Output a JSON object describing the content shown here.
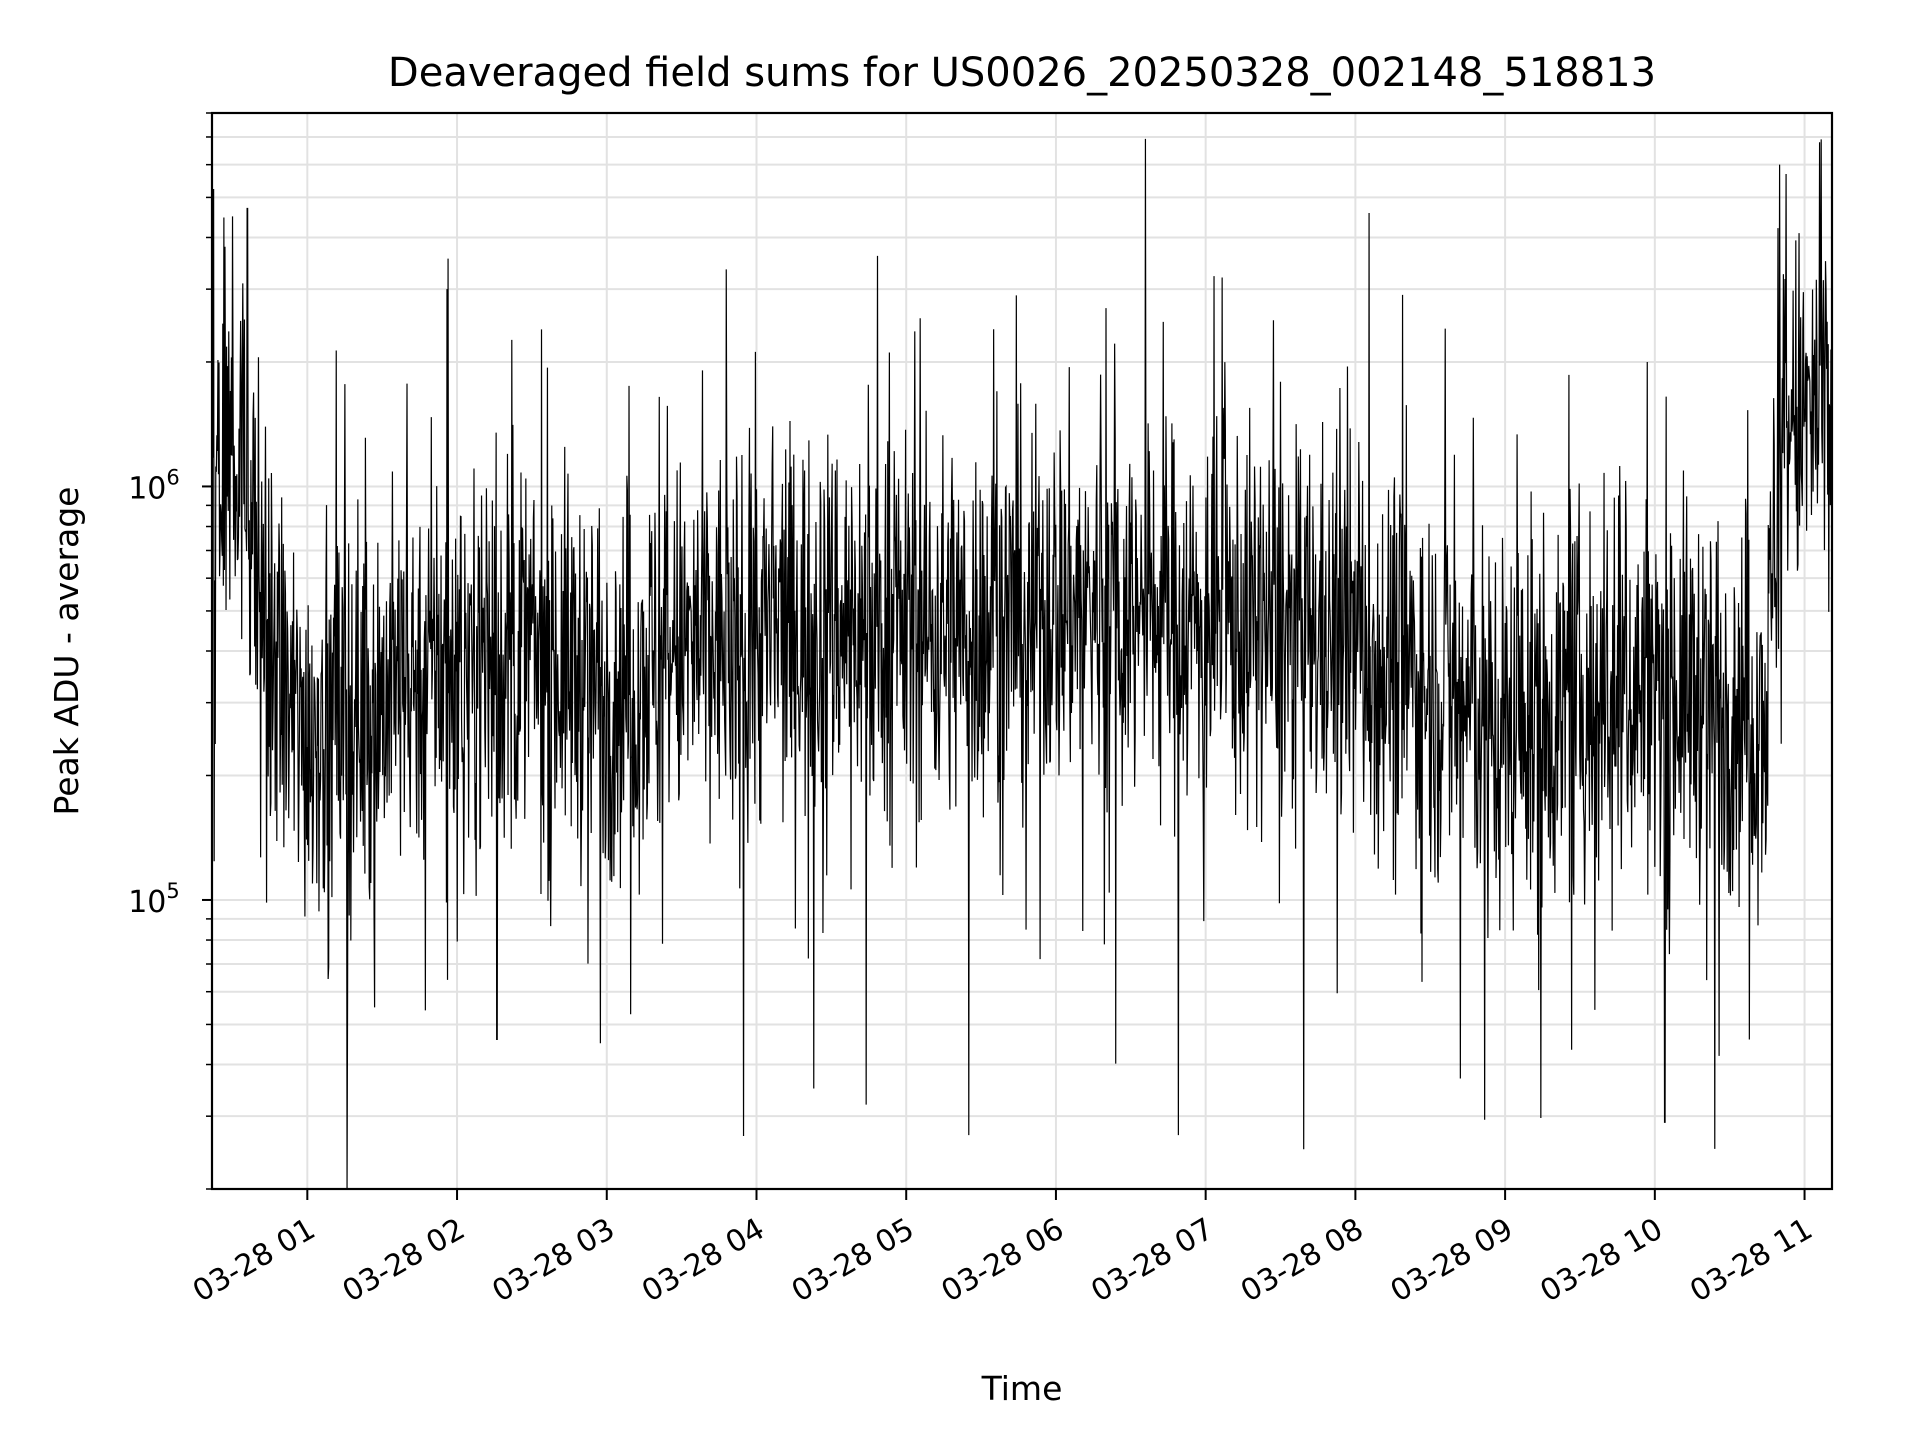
{
  "chart_data": {
    "type": "line",
    "title": "Deaveraged field sums for US0026_20250328_002148_518813",
    "xlabel": "Time",
    "ylabel": "Peak ADU - average",
    "y_scale": "log",
    "ylim": [
      20000,
      8000000
    ],
    "xlim": [
      "2025-03-28 00:21:48",
      "2025-03-28 11:11:00"
    ],
    "x_ticks": [
      {
        "label": "03-28 01",
        "time": "2025-03-28 01:00"
      },
      {
        "label": "03-28 02",
        "time": "2025-03-28 02:00"
      },
      {
        "label": "03-28 03",
        "time": "2025-03-28 03:00"
      },
      {
        "label": "03-28 04",
        "time": "2025-03-28 04:00"
      },
      {
        "label": "03-28 05",
        "time": "2025-03-28 05:00"
      },
      {
        "label": "03-28 06",
        "time": "2025-03-28 06:00"
      },
      {
        "label": "03-28 07",
        "time": "2025-03-28 07:00"
      },
      {
        "label": "03-28 08",
        "time": "2025-03-28 08:00"
      },
      {
        "label": "03-28 09",
        "time": "2025-03-28 09:00"
      },
      {
        "label": "03-28 10",
        "time": "2025-03-28 10:00"
      },
      {
        "label": "03-28 11",
        "time": "2025-03-28 11:00"
      }
    ],
    "y_ticks": [
      {
        "base": "10",
        "exp": "5",
        "value": 100000
      },
      {
        "base": "10",
        "exp": "6",
        "value": 1000000
      }
    ],
    "grid": true,
    "series_color": "#000000",
    "series": [
      {
        "trend": [
          {
            "t": "2025-03-28 00:22",
            "y": 1200000
          },
          {
            "t": "2025-03-28 00:30",
            "y": 1500000
          },
          {
            "t": "2025-03-28 00:37",
            "y": 900000
          },
          {
            "t": "2025-03-28 00:45",
            "y": 400000
          },
          {
            "t": "2025-03-28 00:55",
            "y": 260000
          },
          {
            "t": "2025-03-28 01:20",
            "y": 280000
          },
          {
            "t": "2025-03-28 01:50",
            "y": 380000
          },
          {
            "t": "2025-03-28 02:30",
            "y": 400000
          },
          {
            "t": "2025-03-28 03:00",
            "y": 330000
          },
          {
            "t": "2025-03-28 03:30",
            "y": 400000
          },
          {
            "t": "2025-03-28 04:00",
            "y": 430000
          },
          {
            "t": "2025-03-28 04:30",
            "y": 480000
          },
          {
            "t": "2025-03-28 05:00",
            "y": 450000
          },
          {
            "t": "2025-03-28 05:30",
            "y": 460000
          },
          {
            "t": "2025-03-28 06:00",
            "y": 520000
          },
          {
            "t": "2025-03-28 06:30",
            "y": 520000
          },
          {
            "t": "2025-03-28 07:00",
            "y": 470000
          },
          {
            "t": "2025-03-28 07:30",
            "y": 450000
          },
          {
            "t": "2025-03-28 08:00",
            "y": 420000
          },
          {
            "t": "2025-03-28 08:30",
            "y": 330000
          },
          {
            "t": "2025-03-28 09:00",
            "y": 260000
          },
          {
            "t": "2025-03-28 09:30",
            "y": 300000
          },
          {
            "t": "2025-03-28 10:00",
            "y": 330000
          },
          {
            "t": "2025-03-28 10:30",
            "y": 310000
          },
          {
            "t": "2025-03-28 10:45",
            "y": 300000
          },
          {
            "t": "2025-03-28 10:48",
            "y": 800000
          },
          {
            "t": "2025-03-28 10:52",
            "y": 1400000
          },
          {
            "t": "2025-03-28 11:11",
            "y": 1500000
          }
        ],
        "spikes_high": [
          {
            "t": "2025-03-28 00:27",
            "y": 3800000
          },
          {
            "t": "2025-03-28 00:30",
            "y": 4500000
          },
          {
            "t": "2025-03-28 00:36",
            "y": 4700000
          },
          {
            "t": "2025-03-28 01:56",
            "y": 3000000
          },
          {
            "t": "2025-03-28 05:35",
            "y": 2400000
          },
          {
            "t": "2025-03-28 06:20",
            "y": 2700000
          },
          {
            "t": "2025-03-28 06:43",
            "y": 2500000
          },
          {
            "t": "2025-03-28 09:57",
            "y": 2000000
          },
          {
            "t": "2025-03-28 10:50",
            "y": 6000000
          },
          {
            "t": "2025-03-28 11:06",
            "y": 6800000
          }
        ],
        "spikes_low": [
          {
            "t": "2025-03-28 01:27",
            "y": 55000
          },
          {
            "t": "2025-03-28 02:16",
            "y": 46000
          },
          {
            "t": "2025-03-28 04:23",
            "y": 35000
          },
          {
            "t": "2025-03-28 04:44",
            "y": 32000
          },
          {
            "t": "2025-03-28 05:25",
            "y": 27000
          },
          {
            "t": "2025-03-28 06:49",
            "y": 27000
          },
          {
            "t": "2025-03-28 08:42",
            "y": 37000
          },
          {
            "t": "2025-03-28 10:04",
            "y": 29000
          },
          {
            "t": "2025-03-28 10:24",
            "y": 25000
          }
        ]
      }
    ]
  }
}
